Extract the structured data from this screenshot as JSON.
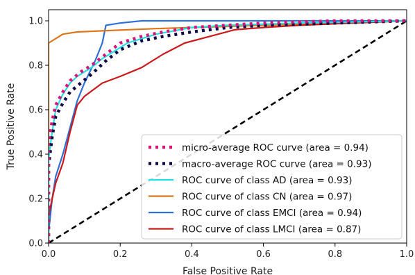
{
  "chart_data": {
    "type": "line",
    "title": "",
    "xlabel": "False Positive Rate",
    "ylabel": "True Positive Rate",
    "xlim": [
      0.0,
      1.0
    ],
    "ylim": [
      0.0,
      1.05
    ],
    "xticks": [
      "0.0",
      "0.2",
      "0.4",
      "0.6",
      "0.8",
      "1.0"
    ],
    "yticks": [
      "0.0",
      "0.2",
      "0.4",
      "0.6",
      "0.8",
      "1.0"
    ],
    "grid": false,
    "legend_position": "lower-right",
    "series": [
      {
        "name": "micro-average ROC curve (area = 0.94)",
        "color": "#d6177a",
        "style": "dotted-thick",
        "x": [
          0.0,
          0.0,
          0.01,
          0.02,
          0.04,
          0.06,
          0.09,
          0.12,
          0.16,
          0.2,
          0.26,
          0.32,
          0.4,
          0.5,
          0.6,
          0.8,
          1.0
        ],
        "y": [
          0.0,
          0.45,
          0.55,
          0.62,
          0.68,
          0.73,
          0.77,
          0.8,
          0.85,
          0.9,
          0.93,
          0.95,
          0.97,
          0.98,
          0.99,
          1.0,
          1.0
        ]
      },
      {
        "name": "macro-average ROC curve (area = 0.93)",
        "color": "#0c0c4a",
        "style": "dotted-thick",
        "x": [
          0.0,
          0.0,
          0.01,
          0.02,
          0.04,
          0.06,
          0.09,
          0.12,
          0.16,
          0.2,
          0.26,
          0.32,
          0.4,
          0.5,
          0.6,
          0.8,
          1.0
        ],
        "y": [
          0.0,
          0.35,
          0.48,
          0.57,
          0.63,
          0.68,
          0.72,
          0.76,
          0.82,
          0.87,
          0.91,
          0.93,
          0.95,
          0.97,
          0.98,
          0.99,
          1.0
        ]
      },
      {
        "name": "ROC curve of class AD (area = 0.93)",
        "color": "#22e0e6",
        "style": "solid",
        "x": [
          0.0,
          0.0,
          0.01,
          0.02,
          0.04,
          0.06,
          0.08,
          0.1,
          0.12,
          0.15,
          0.18,
          0.22,
          0.3,
          0.4,
          0.5,
          0.7,
          1.0
        ],
        "y": [
          0.0,
          0.38,
          0.5,
          0.6,
          0.67,
          0.72,
          0.75,
          0.77,
          0.79,
          0.83,
          0.86,
          0.9,
          0.94,
          0.97,
          0.98,
          0.99,
          1.0
        ]
      },
      {
        "name": "ROC curve of class CN (area = 0.97)",
        "color": "#e0761a",
        "style": "solid",
        "x": [
          0.0,
          0.0,
          0.02,
          0.04,
          0.08,
          0.15,
          0.3,
          0.5,
          0.7,
          0.9,
          1.0
        ],
        "y": [
          0.0,
          0.9,
          0.92,
          0.94,
          0.95,
          0.955,
          0.965,
          0.975,
          0.985,
          0.995,
          1.0
        ]
      },
      {
        "name": "ROC curve of class EMCI (area = 0.94)",
        "color": "#2f6fd8",
        "style": "solid",
        "x": [
          0.0,
          0.0,
          0.01,
          0.02,
          0.04,
          0.06,
          0.08,
          0.1,
          0.13,
          0.15,
          0.16,
          0.2,
          0.26,
          0.4,
          0.6,
          1.0
        ],
        "y": [
          0.0,
          0.05,
          0.2,
          0.3,
          0.4,
          0.52,
          0.64,
          0.72,
          0.82,
          0.9,
          0.98,
          0.99,
          1.0,
          1.0,
          1.0,
          1.0
        ]
      },
      {
        "name": "ROC curve of class LMCI (area = 0.87)",
        "color": "#cc1a1a",
        "style": "solid",
        "x": [
          0.0,
          0.0,
          0.01,
          0.02,
          0.04,
          0.06,
          0.08,
          0.1,
          0.15,
          0.2,
          0.26,
          0.32,
          0.38,
          0.45,
          0.52,
          0.6,
          0.7,
          0.85,
          1.0
        ],
        "y": [
          0.0,
          0.12,
          0.2,
          0.27,
          0.36,
          0.5,
          0.62,
          0.66,
          0.72,
          0.75,
          0.79,
          0.85,
          0.9,
          0.93,
          0.96,
          0.97,
          0.98,
          0.99,
          1.0
        ]
      },
      {
        "name": "",
        "color": "#000000",
        "style": "dashed",
        "x": [
          0.0,
          1.0
        ],
        "y": [
          0.0,
          1.0
        ]
      }
    ]
  }
}
